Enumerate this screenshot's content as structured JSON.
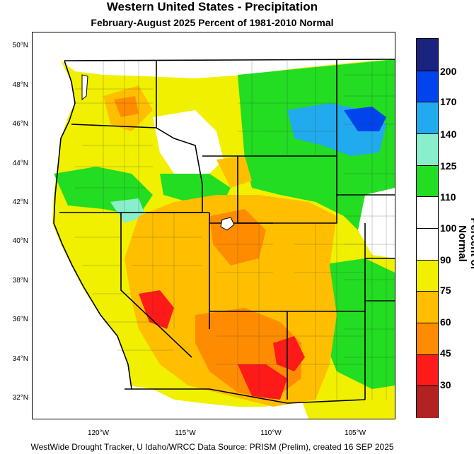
{
  "header": {
    "title": "Western United States - Precipitation",
    "subtitle": "February-August 2025  Percent of 1981-2010 Normal"
  },
  "footer": {
    "credit": "WestWide Drought Tracker, U Idaho/WRCC Data Source: PRISM (Prelim), created 16 SEP 2025"
  },
  "map": {
    "lat_labels": [
      "50°N",
      "48°N",
      "46°N",
      "44°N",
      "42°N",
      "40°N",
      "38°N",
      "36°N",
      "34°N",
      "32°N"
    ],
    "lon_labels": [
      "120°W",
      "115°W",
      "110°W",
      "105°W"
    ],
    "colors": {
      "dark_red": "#b22222",
      "red": "#ff1a1a",
      "orange": "#ff8c00",
      "gold": "#ffbf00",
      "yellow": "#f0f000",
      "white": "#ffffff",
      "green": "#22dd22",
      "aqua": "#88eecc",
      "sky": "#22aaee",
      "blue": "#0044ee",
      "navy": "#1a237e",
      "water": "#ffffff"
    }
  },
  "legend": {
    "title": "Percent of Normal",
    "labels": [
      "200",
      "170",
      "140",
      "125",
      "110",
      "100",
      "90",
      "75",
      "60",
      "45",
      "30"
    ],
    "bands": [
      {
        "color": "#1a237e"
      },
      {
        "color": "#0044ee"
      },
      {
        "color": "#22aaee"
      },
      {
        "color": "#88eecc"
      },
      {
        "color": "#22dd22"
      },
      {
        "color": "#ffffff"
      },
      {
        "color": "#ffffff"
      },
      {
        "color": "#f0f000"
      },
      {
        "color": "#ffbf00"
      },
      {
        "color": "#ff8c00"
      },
      {
        "color": "#ff1a1a"
      },
      {
        "color": "#b22222"
      }
    ]
  }
}
